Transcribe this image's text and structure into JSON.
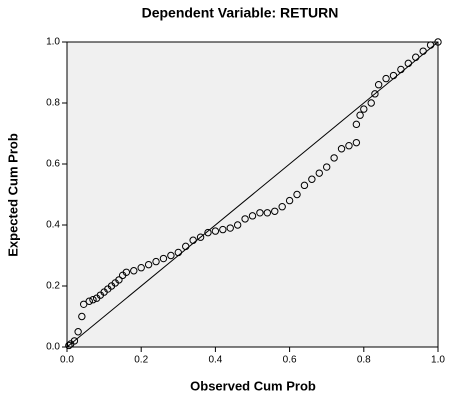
{
  "chart_data": {
    "type": "scatter",
    "title": "Dependent Variable: RETURN",
    "x_label": "Observed Cum Prob",
    "y_label": "Expected Cum Prob",
    "color": "#000000",
    "xlim": [
      0,
      1
    ],
    "ylim": [
      0,
      1
    ],
    "xticks": [
      {
        "value": 0,
        "label": "0.0"
      },
      0.2,
      0.4,
      0.6,
      0.8,
      {
        "value": 1,
        "label": "1.0"
      }
    ],
    "yticks": [
      {
        "value": 0,
        "label": "0.0"
      },
      0.2,
      0.4,
      0.6,
      0.8,
      {
        "value": 1,
        "label": "1.0"
      }
    ],
    "x": [
      0.005,
      0.01,
      0.02,
      0.03,
      0.04,
      0.045,
      0.06,
      0.07,
      0.08,
      0.09,
      0.1,
      0.11,
      0.12,
      0.13,
      0.14,
      0.15,
      0.16,
      0.18,
      0.2,
      0.22,
      0.24,
      0.26,
      0.28,
      0.3,
      0.32,
      0.34,
      0.36,
      0.38,
      0.4,
      0.42,
      0.44,
      0.46,
      0.48,
      0.5,
      0.52,
      0.54,
      0.56,
      0.58,
      0.6,
      0.62,
      0.64,
      0.66,
      0.68,
      0.7,
      0.72,
      0.74,
      0.76,
      0.78,
      0.78,
      0.79,
      0.8,
      0.82,
      0.83,
      0.84,
      0.86,
      0.88,
      0.9,
      0.92,
      0.94,
      0.96,
      0.98,
      1.0
    ],
    "values": [
      0.005,
      0.01,
      0.02,
      0.05,
      0.1,
      0.14,
      0.15,
      0.155,
      0.16,
      0.17,
      0.18,
      0.19,
      0.2,
      0.21,
      0.22,
      0.235,
      0.245,
      0.25,
      0.26,
      0.27,
      0.28,
      0.29,
      0.3,
      0.31,
      0.33,
      0.35,
      0.36,
      0.375,
      0.38,
      0.385,
      0.39,
      0.4,
      0.42,
      0.43,
      0.44,
      0.44,
      0.445,
      0.46,
      0.48,
      0.5,
      0.53,
      0.55,
      0.57,
      0.59,
      0.62,
      0.65,
      0.66,
      0.67,
      0.73,
      0.76,
      0.78,
      0.8,
      0.83,
      0.86,
      0.88,
      0.89,
      0.91,
      0.93,
      0.95,
      0.97,
      0.99,
      1.0
    ]
  }
}
